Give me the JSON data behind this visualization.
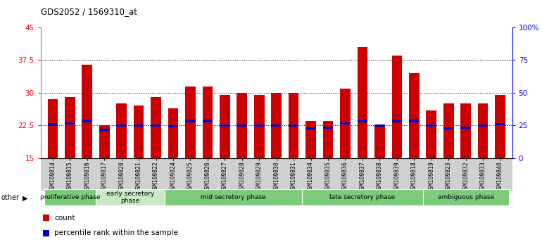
{
  "title": "GDS2052 / 1569310_at",
  "samples": [
    "GSM109814",
    "GSM109815",
    "GSM109816",
    "GSM109817",
    "GSM109820",
    "GSM109821",
    "GSM109822",
    "GSM109824",
    "GSM109825",
    "GSM109826",
    "GSM109827",
    "GSM109828",
    "GSM109829",
    "GSM109830",
    "GSM109831",
    "GSM109834",
    "GSM109835",
    "GSM109836",
    "GSM109837",
    "GSM109838",
    "GSM109839",
    "GSM109818",
    "GSM109819",
    "GSM109823",
    "GSM109832",
    "GSM109833",
    "GSM109840"
  ],
  "count_values": [
    28.5,
    29.0,
    36.5,
    22.5,
    27.5,
    27.0,
    29.0,
    26.5,
    31.5,
    31.5,
    29.5,
    30.0,
    29.5,
    30.0,
    30.0,
    23.5,
    23.5,
    31.0,
    40.5,
    22.5,
    38.5,
    34.5,
    26.0,
    27.5,
    27.5,
    27.5,
    29.5
  ],
  "percentile_values": [
    22.7,
    23.0,
    23.5,
    21.5,
    22.5,
    22.5,
    22.5,
    22.3,
    23.5,
    23.5,
    22.5,
    22.5,
    22.5,
    22.5,
    22.5,
    21.8,
    22.0,
    23.0,
    23.5,
    22.5,
    23.5,
    23.5,
    22.5,
    21.8,
    22.0,
    22.5,
    22.8
  ],
  "phase_groups": [
    {
      "label": "proliferative phase",
      "start": 0,
      "end": 3,
      "color": "#7acc7a"
    },
    {
      "label": "early secretory\nphase",
      "start": 3,
      "end": 7,
      "color": "#c8e8c8"
    },
    {
      "label": "mid secretory phase",
      "start": 7,
      "end": 15,
      "color": "#7acc7a"
    },
    {
      "label": "late secretory phase",
      "start": 15,
      "end": 22,
      "color": "#7acc7a"
    },
    {
      "label": "ambiguous phase",
      "start": 22,
      "end": 27,
      "color": "#7acc7a"
    }
  ],
  "ylim_left": [
    15,
    45
  ],
  "ylim_right": [
    0,
    100
  ],
  "yticks_left": [
    15,
    22.5,
    30,
    37.5,
    45
  ],
  "yticks_right": [
    0,
    25,
    50,
    75,
    100
  ],
  "ytick_labels_right": [
    "0",
    "25",
    "50",
    "75",
    "100%"
  ],
  "bar_color": "#cc0000",
  "percentile_color": "#0000cc",
  "grid_color": "#000000",
  "bg_color": "#d0d0d0",
  "plot_bg": "#ffffff"
}
